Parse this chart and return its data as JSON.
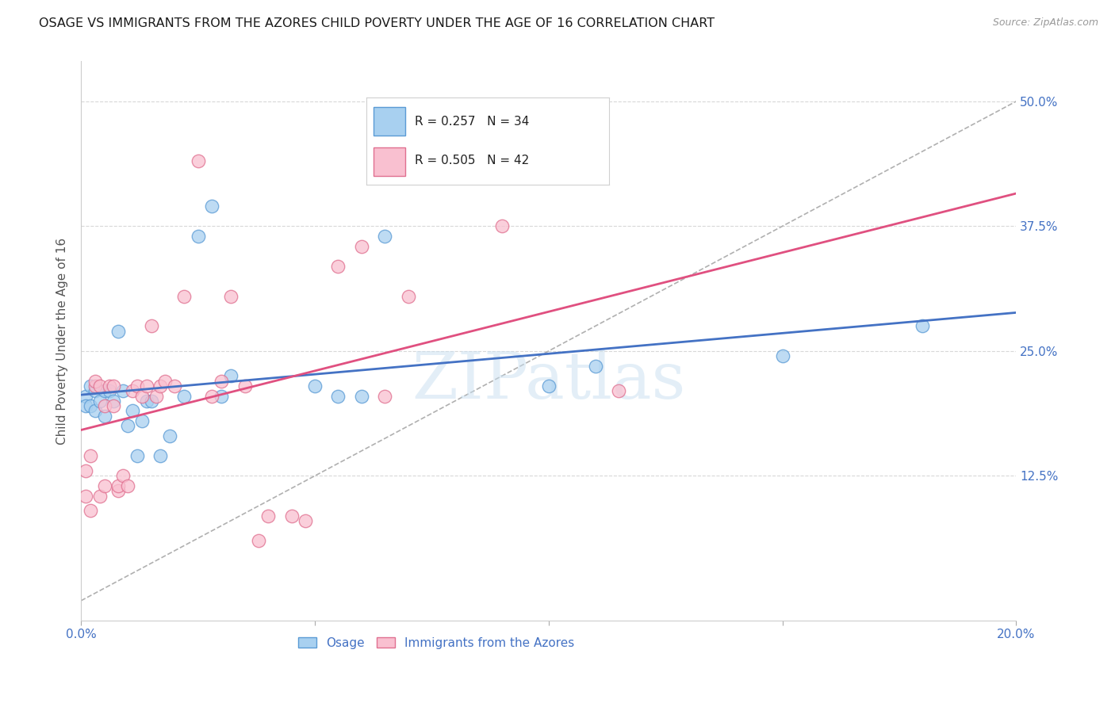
{
  "title": "OSAGE VS IMMIGRANTS FROM THE AZORES CHILD POVERTY UNDER THE AGE OF 16 CORRELATION CHART",
  "source": "Source: ZipAtlas.com",
  "ylabel": "Child Poverty Under the Age of 16",
  "xlim": [
    0.0,
    0.2
  ],
  "ylim": [
    -0.02,
    0.54
  ],
  "plot_ylim": [
    0.0,
    0.5
  ],
  "yticks": [
    0.125,
    0.25,
    0.375,
    0.5
  ],
  "xticks": [
    0.0,
    0.05,
    0.1,
    0.15,
    0.2
  ],
  "ytick_labels": [
    "12.5%",
    "25.0%",
    "37.5%",
    "50.0%"
  ],
  "xtick_labels": [
    "0.0%",
    "",
    "",
    "",
    "20.0%"
  ],
  "legend_osage": "Osage",
  "legend_azores": "Immigrants from the Azores",
  "R_osage": "0.257",
  "N_osage": "34",
  "R_azores": "0.505",
  "N_azores": "42",
  "color_osage_fill": "#a8d0f0",
  "color_osage_edge": "#5b9bd5",
  "color_azores_fill": "#f9c0d0",
  "color_azores_edge": "#e07090",
  "color_line_osage": "#4472C4",
  "color_line_azores": "#E05080",
  "color_diagonal": "#b0b0b0",
  "color_grid": "#d8d8d8",
  "color_tick_labels": "#4472C4",
  "background_color": "#ffffff",
  "watermark": "ZIPatlas",
  "osage_x": [
    0.001,
    0.001,
    0.002,
    0.002,
    0.003,
    0.003,
    0.004,
    0.005,
    0.005,
    0.006,
    0.007,
    0.008,
    0.009,
    0.01,
    0.011,
    0.012,
    0.013,
    0.014,
    0.015,
    0.017,
    0.019,
    0.022,
    0.025,
    0.028,
    0.03,
    0.032,
    0.05,
    0.055,
    0.06,
    0.065,
    0.1,
    0.11,
    0.15,
    0.18
  ],
  "osage_y": [
    0.205,
    0.195,
    0.215,
    0.195,
    0.21,
    0.19,
    0.2,
    0.21,
    0.185,
    0.21,
    0.2,
    0.27,
    0.21,
    0.175,
    0.19,
    0.145,
    0.18,
    0.2,
    0.2,
    0.145,
    0.165,
    0.205,
    0.365,
    0.395,
    0.205,
    0.225,
    0.215,
    0.205,
    0.205,
    0.365,
    0.215,
    0.235,
    0.245,
    0.275
  ],
  "azores_x": [
    0.001,
    0.001,
    0.002,
    0.002,
    0.003,
    0.003,
    0.004,
    0.004,
    0.005,
    0.005,
    0.006,
    0.007,
    0.007,
    0.008,
    0.008,
    0.009,
    0.01,
    0.011,
    0.012,
    0.013,
    0.014,
    0.015,
    0.016,
    0.017,
    0.018,
    0.02,
    0.022,
    0.025,
    0.028,
    0.03,
    0.032,
    0.035,
    0.038,
    0.04,
    0.045,
    0.048,
    0.055,
    0.06,
    0.065,
    0.07,
    0.09,
    0.115
  ],
  "azores_y": [
    0.13,
    0.105,
    0.145,
    0.09,
    0.215,
    0.22,
    0.215,
    0.105,
    0.195,
    0.115,
    0.215,
    0.195,
    0.215,
    0.11,
    0.115,
    0.125,
    0.115,
    0.21,
    0.215,
    0.205,
    0.215,
    0.275,
    0.205,
    0.215,
    0.22,
    0.215,
    0.305,
    0.44,
    0.205,
    0.22,
    0.305,
    0.215,
    0.06,
    0.085,
    0.085,
    0.08,
    0.335,
    0.355,
    0.205,
    0.305,
    0.375,
    0.21
  ]
}
